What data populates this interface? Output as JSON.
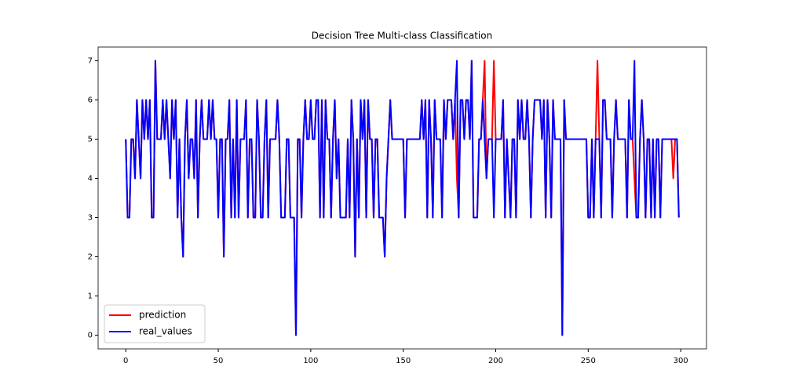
{
  "chart_data": {
    "type": "line",
    "title": "Decision Tree Multi-class Classification",
    "xlim": [
      -14.95,
      313.95
    ],
    "xticks": [
      0,
      50,
      100,
      150,
      200,
      250,
      300
    ],
    "ylim": [
      -0.35,
      7.35
    ],
    "yticks": [
      0,
      1,
      2,
      3,
      4,
      5,
      6,
      7
    ],
    "legend": "lower left",
    "series": [
      {
        "name": "prediction",
        "color": "#ff0000",
        "values": [
          5,
          3,
          3,
          5,
          5,
          4,
          6,
          5,
          4,
          6,
          5,
          6,
          5,
          6,
          3,
          3,
          7,
          5,
          5,
          5,
          6,
          5,
          6,
          5,
          4,
          6,
          5,
          6,
          3,
          5,
          3,
          2,
          5,
          6,
          4,
          5,
          5,
          4,
          6,
          3,
          5,
          6,
          5,
          5,
          5,
          6,
          5,
          6,
          5,
          5,
          3,
          5,
          5,
          2,
          5,
          5,
          6,
          3,
          5,
          3,
          6,
          3,
          5,
          5,
          5,
          6,
          3,
          5,
          5,
          3,
          3,
          6,
          5,
          3,
          3,
          5,
          6,
          3,
          5,
          5,
          5,
          5,
          6,
          5,
          3,
          3,
          3,
          5,
          5,
          3,
          3,
          3,
          0,
          5,
          5,
          3,
          5,
          6,
          5,
          5,
          6,
          5,
          5,
          6,
          6,
          3,
          6,
          3,
          6,
          5,
          5,
          3,
          5,
          6,
          4,
          5,
          3,
          3,
          3,
          3,
          5,
          3,
          6,
          5,
          2,
          5,
          3,
          6,
          5,
          6,
          3,
          6,
          5,
          5,
          3,
          5,
          5,
          3,
          3,
          3,
          2,
          4,
          5,
          6,
          5,
          5,
          5,
          5,
          5,
          5,
          5,
          3,
          5,
          5,
          5,
          5,
          5,
          5,
          5,
          5,
          6,
          5,
          6,
          3,
          6,
          5,
          3,
          6,
          5,
          5,
          5,
          3,
          6,
          5,
          6,
          6,
          6,
          5,
          6,
          4,
          3,
          6,
          6,
          5,
          6,
          6,
          5,
          7,
          3,
          3,
          3,
          5,
          5,
          6,
          7,
          4,
          5,
          5,
          5,
          7,
          5,
          5,
          5,
          5,
          6,
          3,
          5,
          4,
          3,
          5,
          5,
          3,
          6,
          5,
          6,
          5,
          5,
          6,
          5,
          3,
          5,
          6,
          6,
          6,
          6,
          5,
          6,
          3,
          6,
          5,
          3,
          6,
          5,
          5,
          5,
          5,
          0,
          6,
          5,
          5,
          5,
          5,
          5,
          5,
          5,
          5,
          5,
          5,
          5,
          5,
          3,
          3,
          5,
          3,
          5,
          7,
          5,
          3,
          6,
          6,
          5,
          5,
          5,
          3,
          5,
          6,
          5,
          5,
          5,
          5,
          5,
          3,
          6,
          5,
          5,
          4,
          3,
          3,
          5,
          6,
          5,
          3,
          5,
          5,
          3,
          5,
          3,
          5,
          5,
          3,
          5,
          5,
          5,
          5,
          5,
          5,
          4,
          5,
          5,
          3
        ]
      },
      {
        "name": "real_values",
        "color": "#0000ff",
        "values": [
          5,
          3,
          3,
          5,
          5,
          4,
          6,
          5,
          4,
          6,
          5,
          6,
          5,
          6,
          3,
          3,
          7,
          5,
          5,
          5,
          6,
          5,
          6,
          5,
          4,
          6,
          5,
          6,
          3,
          5,
          3,
          2,
          5,
          6,
          4,
          5,
          5,
          4,
          6,
          3,
          5,
          6,
          5,
          5,
          5,
          6,
          5,
          6,
          5,
          5,
          3,
          5,
          5,
          2,
          5,
          5,
          6,
          3,
          5,
          3,
          6,
          3,
          5,
          5,
          5,
          6,
          3,
          5,
          5,
          3,
          3,
          6,
          5,
          3,
          3,
          5,
          6,
          3,
          5,
          5,
          5,
          5,
          6,
          5,
          3,
          3,
          3,
          5,
          5,
          3,
          3,
          3,
          0,
          5,
          5,
          3,
          5,
          6,
          5,
          5,
          6,
          5,
          5,
          6,
          6,
          3,
          6,
          3,
          6,
          5,
          5,
          3,
          5,
          6,
          4,
          5,
          3,
          3,
          3,
          3,
          5,
          3,
          6,
          5,
          2,
          5,
          3,
          6,
          5,
          6,
          3,
          6,
          5,
          5,
          3,
          5,
          5,
          3,
          3,
          3,
          2,
          4,
          5,
          6,
          5,
          5,
          5,
          5,
          5,
          5,
          5,
          3,
          5,
          5,
          5,
          5,
          5,
          5,
          5,
          5,
          6,
          5,
          6,
          3,
          6,
          5,
          3,
          6,
          5,
          5,
          5,
          3,
          6,
          5,
          6,
          6,
          6,
          5,
          6,
          7,
          3,
          6,
          6,
          5,
          6,
          6,
          5,
          7,
          3,
          3,
          3,
          5,
          5,
          6,
          5,
          4,
          5,
          5,
          5,
          3,
          5,
          5,
          5,
          5,
          6,
          3,
          5,
          4,
          3,
          5,
          5,
          3,
          6,
          5,
          6,
          5,
          5,
          6,
          5,
          3,
          5,
          6,
          6,
          6,
          6,
          5,
          6,
          3,
          6,
          5,
          3,
          6,
          5,
          5,
          5,
          5,
          0,
          6,
          5,
          5,
          5,
          5,
          5,
          5,
          5,
          5,
          5,
          5,
          5,
          5,
          3,
          3,
          5,
          3,
          5,
          5,
          5,
          3,
          6,
          6,
          5,
          5,
          5,
          3,
          5,
          6,
          5,
          5,
          5,
          5,
          5,
          3,
          6,
          5,
          5,
          7,
          3,
          3,
          5,
          6,
          5,
          3,
          5,
          5,
          3,
          5,
          3,
          5,
          5,
          3,
          5,
          5,
          5,
          5,
          5,
          5,
          5,
          5,
          5,
          3
        ]
      }
    ]
  }
}
